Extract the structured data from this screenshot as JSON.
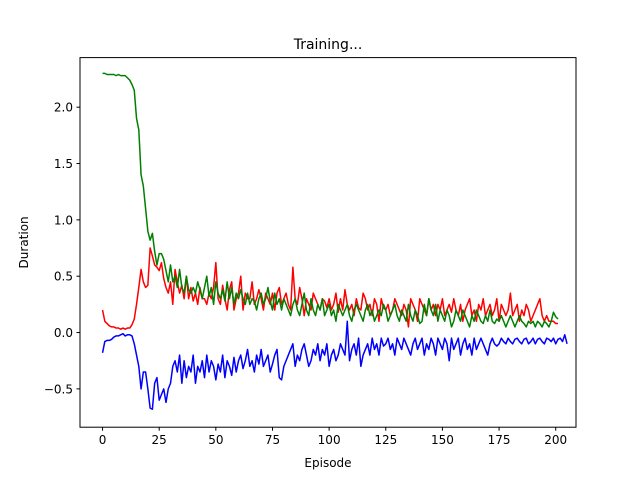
{
  "chart_data": {
    "type": "line",
    "title": "Training...",
    "xlabel": "Episode",
    "ylabel": "Duration",
    "xlim": [
      -9.95,
      208.95
    ],
    "ylim": [
      -0.84,
      2.44
    ],
    "x_ticks": [
      0,
      25,
      50,
      75,
      100,
      125,
      150,
      175,
      200
    ],
    "y_ticks": [
      -0.5,
      0.0,
      0.5,
      1.0,
      1.5,
      2.0
    ],
    "y_tick_labels": [
      "−0.5",
      "0.0",
      "0.5",
      "1.0",
      "1.5",
      "2.0"
    ],
    "grid": false,
    "series": [
      {
        "color": "#ff0000",
        "values": [
          0.2,
          0.1,
          0.08,
          0.06,
          0.05,
          0.05,
          0.04,
          0.04,
          0.03,
          0.04,
          0.03,
          0.04,
          0.04,
          0.07,
          0.12,
          0.25,
          0.4,
          0.56,
          0.45,
          0.4,
          0.42,
          0.75,
          0.68,
          0.6,
          0.58,
          0.55,
          0.62,
          0.48,
          0.4,
          0.35,
          0.45,
          0.25,
          0.56,
          0.45,
          0.35,
          0.42,
          0.3,
          0.5,
          0.3,
          0.4,
          0.28,
          0.35,
          0.25,
          0.4,
          0.3,
          0.3,
          0.25,
          0.35,
          0.3,
          0.4,
          0.62,
          0.3,
          0.25,
          0.42,
          0.3,
          0.2,
          0.38,
          0.45,
          0.2,
          0.3,
          0.35,
          0.5,
          0.2,
          0.35,
          0.3,
          0.3,
          0.45,
          0.25,
          0.3,
          0.38,
          0.3,
          0.2,
          0.35,
          0.3,
          0.25,
          0.35,
          0.2,
          0.35,
          0.4,
          0.25,
          0.3,
          0.35,
          0.25,
          0.2,
          0.58,
          0.3,
          0.25,
          0.4,
          0.3,
          0.15,
          0.3,
          0.25,
          0.2,
          0.35,
          0.3,
          0.25,
          0.2,
          0.3,
          0.28,
          0.22,
          0.3,
          0.2,
          0.25,
          0.35,
          0.18,
          0.3,
          0.2,
          0.38,
          0.25,
          0.2,
          0.25,
          0.15,
          0.3,
          0.22,
          0.2,
          0.35,
          0.3,
          0.2,
          0.25,
          0.15,
          0.3,
          0.25,
          0.1,
          0.3,
          0.22,
          0.2,
          0.25,
          0.15,
          0.2,
          0.3,
          0.25,
          0.2,
          0.15,
          0.25,
          0.2,
          0.05,
          0.3,
          0.25,
          0.2,
          0.1,
          0.3,
          0.25,
          0.2,
          0.15,
          0.3,
          0.2,
          0.25,
          0.15,
          0.25,
          0.2,
          0.3,
          0.15,
          0.2,
          0.25,
          0.18,
          0.3,
          0.2,
          0.15,
          0.25,
          0.1,
          0.2,
          0.25,
          0.3,
          0.15,
          0.2,
          0.1,
          0.25,
          0.2,
          0.3,
          0.15,
          0.2,
          0.25,
          0.15,
          0.2,
          0.3,
          0.1,
          0.25,
          0.2,
          0.15,
          0.2,
          0.35,
          0.15,
          0.2,
          0.25,
          0.1,
          0.2,
          0.15,
          0.25,
          0.2,
          0.1,
          0.15,
          0.2,
          0.25,
          0.3,
          0.15,
          0.1,
          0.15,
          0.1,
          0.1,
          0.1,
          0.08,
          0.08
        ]
      },
      {
        "color": "#008000",
        "values": [
          2.3,
          2.3,
          2.29,
          2.29,
          2.29,
          2.29,
          2.28,
          2.29,
          2.28,
          2.28,
          2.28,
          2.26,
          2.24,
          2.2,
          2.15,
          1.9,
          1.8,
          1.4,
          1.3,
          1.1,
          0.9,
          0.82,
          0.88,
          0.72,
          0.6,
          0.7,
          0.7,
          0.65,
          0.55,
          0.45,
          0.6,
          0.45,
          0.5,
          0.4,
          0.56,
          0.4,
          0.35,
          0.5,
          0.38,
          0.35,
          0.4,
          0.35,
          0.45,
          0.38,
          0.3,
          0.4,
          0.5,
          0.32,
          0.4,
          0.25,
          0.45,
          0.35,
          0.3,
          0.38,
          0.28,
          0.45,
          0.3,
          0.4,
          0.25,
          0.35,
          0.3,
          0.38,
          0.3,
          0.25,
          0.35,
          0.25,
          0.3,
          0.28,
          0.2,
          0.3,
          0.35,
          0.25,
          0.3,
          0.4,
          0.28,
          0.2,
          0.35,
          0.25,
          0.3,
          0.2,
          0.3,
          0.25,
          0.2,
          0.15,
          0.25,
          0.3,
          0.2,
          0.15,
          0.25,
          0.35,
          0.2,
          0.15,
          0.3,
          0.2,
          0.15,
          0.25,
          0.2,
          0.3,
          0.15,
          0.2,
          0.25,
          0.15,
          0.2,
          0.1,
          0.25,
          0.2,
          0.15,
          0.2,
          0.25,
          0.15,
          0.1,
          0.2,
          0.25,
          0.2,
          0.15,
          0.1,
          0.2,
          0.25,
          0.15,
          0.2,
          0.1,
          0.15,
          0.2,
          0.15,
          0.25,
          0.2,
          0.1,
          0.15,
          0.2,
          0.25,
          0.15,
          0.1,
          0.2,
          0.15,
          0.1,
          0.25,
          0.15,
          0.1,
          0.2,
          0.15,
          0.08,
          0.1,
          0.25,
          0.15,
          0.3,
          0.2,
          0.15,
          0.25,
          0.1,
          0.2,
          0.15,
          0.1,
          0.2,
          0.15,
          0.05,
          0.1,
          0.2,
          0.15,
          0.1,
          0.2,
          0.15,
          0.1,
          0.05,
          0.15,
          0.1,
          0.2,
          0.15,
          0.1,
          0.08,
          0.15,
          0.1,
          0.2,
          0.1,
          0.08,
          0.12,
          0.1,
          0.15,
          0.1,
          0.05,
          0.1,
          0.15,
          0.1,
          0.05,
          0.1,
          0.15,
          0.1,
          0.08,
          0.05,
          0.1,
          0.08,
          0.1,
          0.05,
          0.1,
          0.08,
          0.05,
          0.1,
          0.08,
          0.05,
          0.1,
          0.18,
          0.14,
          0.12
        ]
      },
      {
        "color": "#0000ff",
        "values": [
          -0.18,
          -0.08,
          -0.07,
          -0.07,
          -0.06,
          -0.04,
          -0.03,
          -0.03,
          -0.02,
          -0.01,
          -0.03,
          -0.02,
          -0.02,
          -0.03,
          -0.1,
          -0.2,
          -0.3,
          -0.5,
          -0.35,
          -0.35,
          -0.5,
          -0.67,
          -0.68,
          -0.45,
          -0.4,
          -0.6,
          -0.55,
          -0.5,
          -0.62,
          -0.5,
          -0.45,
          -0.3,
          -0.25,
          -0.35,
          -0.2,
          -0.45,
          -0.25,
          -0.4,
          -0.3,
          -0.35,
          -0.2,
          -0.45,
          -0.3,
          -0.35,
          -0.25,
          -0.4,
          -0.2,
          -0.35,
          -0.25,
          -0.3,
          -0.42,
          -0.28,
          -0.35,
          -0.2,
          -0.4,
          -0.25,
          -0.3,
          -0.38,
          -0.22,
          -0.35,
          -0.25,
          -0.2,
          -0.32,
          -0.25,
          -0.15,
          -0.3,
          -0.25,
          -0.35,
          -0.2,
          -0.28,
          -0.15,
          -0.3,
          -0.25,
          -0.2,
          -0.35,
          -0.28,
          -0.2,
          -0.15,
          -0.4,
          -0.42,
          -0.3,
          -0.25,
          -0.2,
          -0.15,
          -0.1,
          -0.3,
          -0.2,
          -0.25,
          -0.15,
          -0.1,
          -0.2,
          -0.3,
          -0.25,
          -0.15,
          -0.2,
          -0.1,
          -0.25,
          -0.15,
          -0.2,
          -0.1,
          -0.3,
          -0.2,
          -0.15,
          -0.25,
          -0.2,
          -0.1,
          -0.15,
          -0.2,
          0.1,
          -0.25,
          -0.15,
          -0.1,
          -0.2,
          -0.05,
          -0.3,
          -0.2,
          -0.15,
          -0.1,
          -0.2,
          -0.05,
          -0.15,
          -0.1,
          -0.2,
          -0.05,
          -0.12,
          -0.1,
          -0.05,
          -0.15,
          -0.1,
          -0.2,
          -0.05,
          -0.1,
          -0.15,
          -0.05,
          -0.1,
          -0.15,
          -0.2,
          -0.1,
          -0.05,
          -0.15,
          -0.1,
          -0.05,
          -0.2,
          -0.1,
          -0.15,
          -0.05,
          -0.1,
          -0.2,
          -0.05,
          -0.1,
          -0.15,
          -0.05,
          -0.1,
          -0.25,
          -0.05,
          -0.15,
          -0.1,
          -0.05,
          -0.2,
          -0.1,
          -0.05,
          -0.15,
          -0.1,
          -0.2,
          -0.05,
          -0.15,
          -0.1,
          -0.05,
          -0.1,
          -0.15,
          -0.2,
          -0.1,
          -0.05,
          -0.1,
          -0.12,
          -0.1,
          -0.05,
          -0.08,
          -0.1,
          -0.05,
          -0.08,
          -0.1,
          -0.06,
          -0.05,
          -0.08,
          -0.1,
          -0.06,
          -0.05,
          -0.1,
          -0.08,
          -0.05,
          -0.1,
          -0.06,
          -0.05,
          -0.08,
          -0.1,
          -0.05,
          -0.06,
          -0.08,
          -0.05,
          -0.1,
          -0.06,
          -0.05,
          -0.08,
          -0.02,
          -0.1
        ]
      }
    ]
  }
}
